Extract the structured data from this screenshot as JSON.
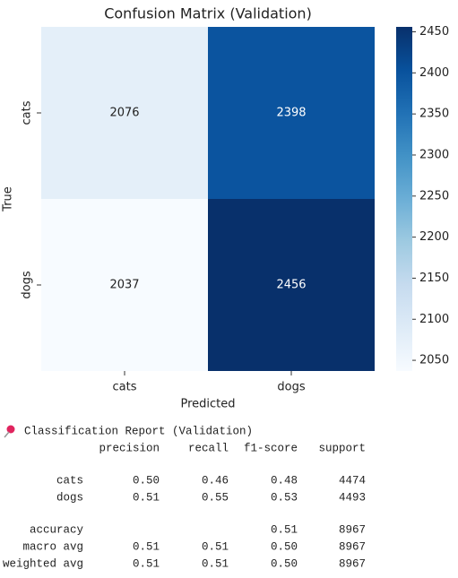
{
  "chart_data": {
    "type": "heatmap",
    "title": "Confusion Matrix (Validation)",
    "x_categories": [
      "cats",
      "dogs"
    ],
    "y_categories": [
      "cats",
      "dogs"
    ],
    "values": [
      [
        2076,
        2398
      ],
      [
        2037,
        2456
      ]
    ],
    "xlabel": "Predicted",
    "ylabel": "True",
    "colormap": "Blues",
    "clim": [
      2037,
      2456
    ],
    "cticks": [
      2050,
      2100,
      2150,
      2200,
      2250,
      2300,
      2350,
      2400,
      2450
    ]
  },
  "report": {
    "title": "Classification Report (Validation)",
    "columns": [
      "precision",
      "recall",
      "f1-score",
      "support"
    ],
    "rows": [
      {
        "label": "cats",
        "cells": [
          "0.50",
          "0.46",
          "0.48",
          "4474"
        ]
      },
      {
        "label": "dogs",
        "cells": [
          "0.51",
          "0.55",
          "0.53",
          "4493"
        ]
      },
      {
        "label": "accuracy",
        "cells": [
          null,
          null,
          "0.51",
          "8967"
        ]
      },
      {
        "label": "macro avg",
        "cells": [
          "0.51",
          "0.51",
          "0.50",
          "8967"
        ]
      },
      {
        "label": "weighted avg",
        "cells": [
          "0.51",
          "0.51",
          "0.50",
          "8967"
        ]
      }
    ]
  }
}
